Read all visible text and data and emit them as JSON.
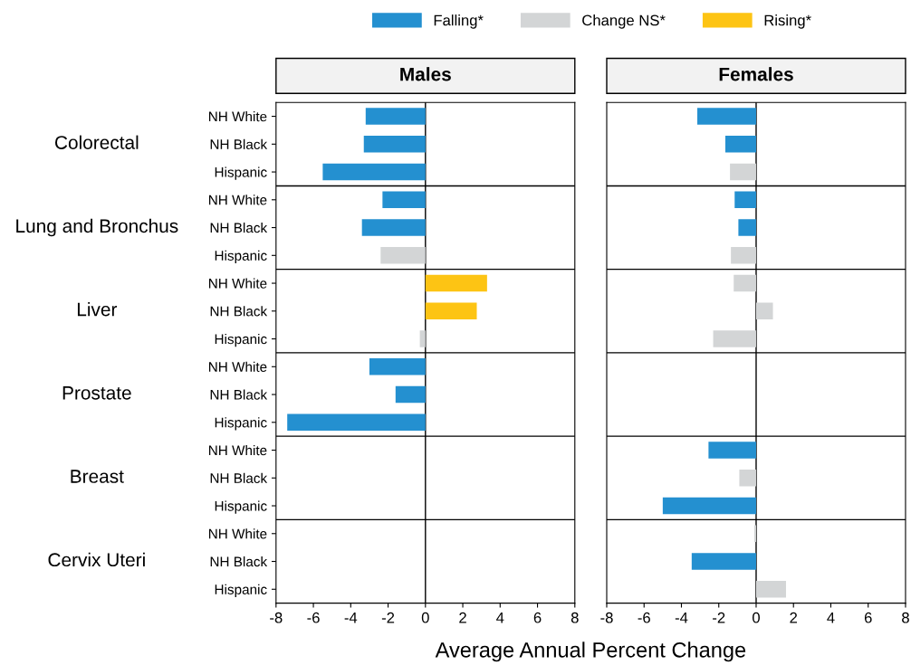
{
  "chart_data": [
    {
      "type": "bar",
      "orientation": "horizontal",
      "title": "Males",
      "xlabel": "Average Annual Percent Change",
      "categories": [
        "NH White",
        "NH Black",
        "Hispanic",
        "NH White",
        "NH Black",
        "Hispanic",
        "NH White",
        "NH Black",
        "Hispanic",
        "NH White",
        "NH Black",
        "Hispanic",
        "NH White",
        "NH Black",
        "Hispanic",
        "NH White",
        "NH Black",
        "Hispanic"
      ],
      "annotations": [
        "Colorectal",
        "Lung and Bronchus",
        "Liver",
        "Prostate",
        "Breast",
        "Cervix Uteri"
      ],
      "series": [
        {
          "name": "Falling*",
          "color": "#2490d0",
          "values": [
            -3.2,
            -3.3,
            -5.5,
            -2.3,
            -3.4,
            null,
            null,
            null,
            null,
            -3.0,
            -1.6,
            -7.4,
            null,
            null,
            null,
            null,
            null,
            null
          ]
        },
        {
          "name": "Change NS*",
          "color": "#d3d5d6",
          "values": [
            null,
            null,
            null,
            null,
            null,
            -2.4,
            null,
            null,
            -0.3,
            null,
            null,
            null,
            null,
            null,
            null,
            null,
            null,
            null
          ]
        },
        {
          "name": "Rising*",
          "color": "#fdc414",
          "values": [
            null,
            null,
            null,
            null,
            null,
            null,
            3.3,
            2.75,
            null,
            null,
            null,
            null,
            null,
            null,
            null,
            null,
            null,
            null
          ]
        }
      ],
      "xlim": [
        -8,
        8
      ],
      "xticks": [
        -8,
        -6,
        -4,
        -2,
        0,
        2,
        4,
        6,
        8
      ],
      "ref_lines": [
        {
          "axis": "x",
          "value": 0,
          "color": "#000000"
        }
      ],
      "legend": "top",
      "grid": false
    },
    {
      "type": "bar",
      "orientation": "horizontal",
      "title": "Females",
      "categories": [
        null,
        null,
        null,
        null,
        null,
        null,
        null,
        null,
        null,
        null,
        null,
        null,
        null,
        null,
        null,
        null,
        null,
        null
      ],
      "series": [
        {
          "color": "#2490d0",
          "values": [
            -3.15,
            -1.65,
            null,
            -1.15,
            -0.95,
            null,
            null,
            null,
            null,
            null,
            null,
            null,
            -2.55,
            null,
            -5.0,
            null,
            -3.45,
            null
          ]
        },
        {
          "color": "#d3d5d6",
          "values": [
            null,
            null,
            -1.4,
            null,
            null,
            -1.35,
            -1.2,
            0.9,
            -2.3,
            null,
            null,
            null,
            null,
            -0.9,
            null,
            -0.1,
            null,
            1.6
          ]
        }
      ],
      "xlim": [
        -8,
        8
      ],
      "xticks": [
        -8,
        -6,
        -4,
        -2,
        0,
        2,
        4,
        6,
        8
      ],
      "ref_lines": [
        {
          "axis": "x",
          "value": 0,
          "color": "#000000"
        }
      ],
      "grid": false
    }
  ]
}
